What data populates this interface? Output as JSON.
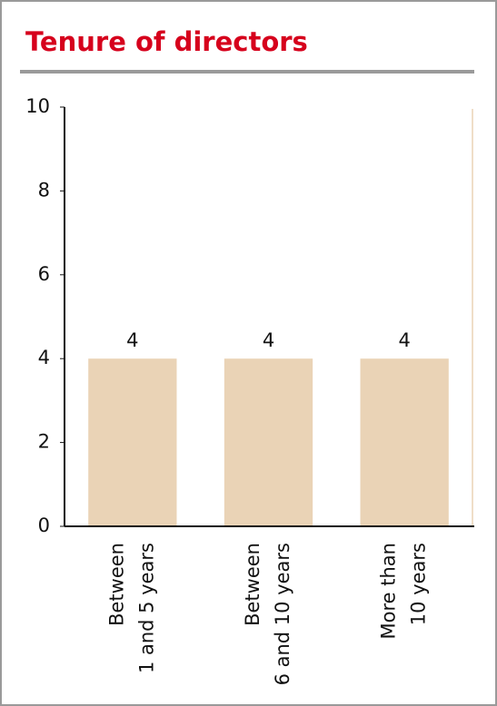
{
  "chart_data": {
    "type": "bar",
    "title": "Tenure of directors",
    "categories": [
      [
        "Between",
        "1 and 5 years"
      ],
      [
        "Between",
        "6 and 10 years"
      ],
      [
        "More than",
        "10 years"
      ]
    ],
    "values": [
      4,
      4,
      4
    ],
    "color": "#ead3b6",
    "ylim": [
      0,
      10
    ],
    "yticks": [
      0,
      2,
      4,
      6,
      8,
      10
    ],
    "grid": false
  }
}
